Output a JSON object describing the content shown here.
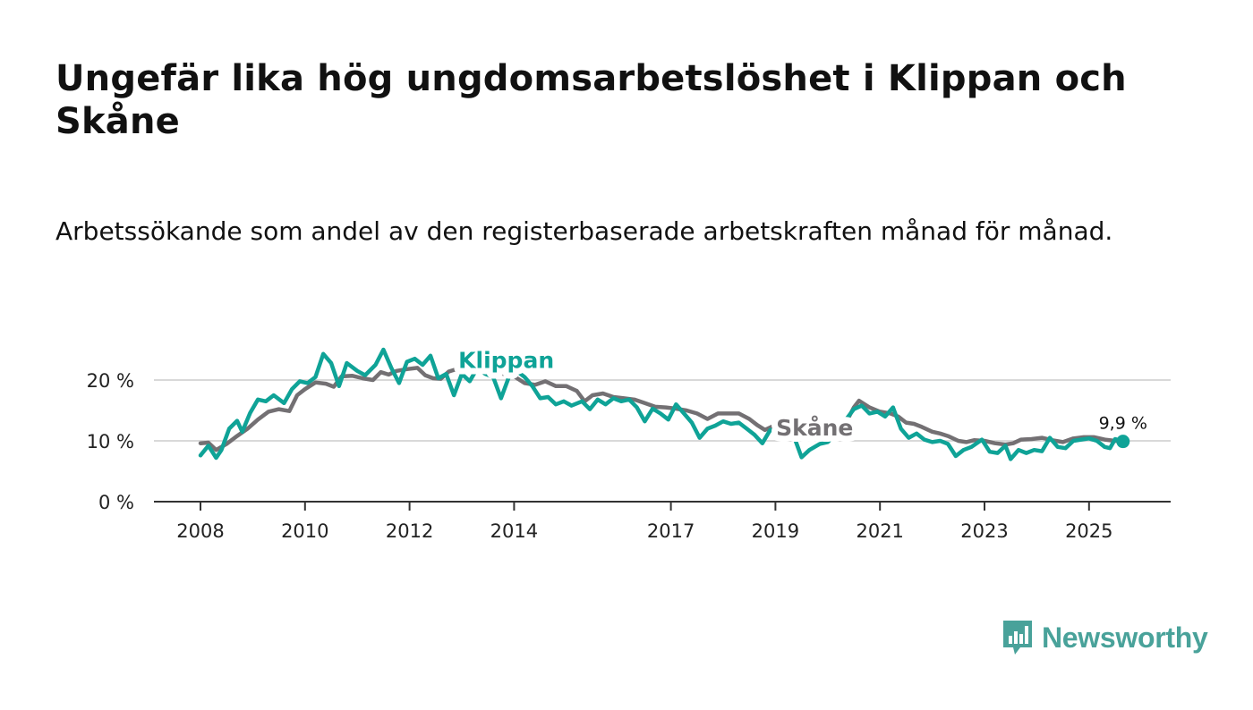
{
  "title": "Ungefär lika hög ungdomsarbetslöshet i Klippan och Skåne",
  "subtitle": "Arbetssökande som andel av den registerbaserade arbetskraften månad för månad.",
  "brand": {
    "name": "Newsworthy",
    "color": "#49a29a"
  },
  "chart_data": {
    "type": "line",
    "title": "Ungefär lika hög ungdomsarbetslöshet i Klippan och Skåne",
    "xlabel": "",
    "ylabel": "",
    "ylim": [
      0,
      25
    ],
    "xlim": [
      2007.6,
      2026.5
    ],
    "grid": true,
    "y_ticks": [
      {
        "value": 0,
        "label": "0 %"
      },
      {
        "value": 10,
        "label": "10 %"
      },
      {
        "value": 20,
        "label": "20 %"
      }
    ],
    "x_ticks": [
      {
        "value": 2008,
        "label": "2008"
      },
      {
        "value": 2010,
        "label": "2010"
      },
      {
        "value": 2012,
        "label": "2012"
      },
      {
        "value": 2014,
        "label": "2014"
      },
      {
        "value": 2017,
        "label": "2017"
      },
      {
        "value": 2019,
        "label": "2019"
      },
      {
        "value": 2021,
        "label": "2021"
      },
      {
        "value": 2023,
        "label": "2023"
      },
      {
        "value": 2025,
        "label": "2025"
      }
    ],
    "series": [
      {
        "name": "Skåne",
        "color": "#737073",
        "label_at": [
          2019.75,
          12.2
        ],
        "points": [
          [
            2008.0,
            9.6
          ],
          [
            2008.15,
            9.7
          ],
          [
            2008.3,
            8.5
          ],
          [
            2008.5,
            9.5
          ],
          [
            2008.7,
            10.8
          ],
          [
            2008.9,
            12.0
          ],
          [
            2009.1,
            13.5
          ],
          [
            2009.3,
            14.8
          ],
          [
            2009.5,
            15.2
          ],
          [
            2009.7,
            14.9
          ],
          [
            2009.85,
            17.5
          ],
          [
            2010.0,
            18.5
          ],
          [
            2010.2,
            19.6
          ],
          [
            2010.4,
            19.4
          ],
          [
            2010.55,
            18.9
          ],
          [
            2010.7,
            20.6
          ],
          [
            2010.9,
            20.7
          ],
          [
            2011.1,
            20.3
          ],
          [
            2011.3,
            20.0
          ],
          [
            2011.45,
            21.3
          ],
          [
            2011.6,
            20.9
          ],
          [
            2011.75,
            21.5
          ],
          [
            2011.95,
            21.8
          ],
          [
            2012.15,
            22.0
          ],
          [
            2012.3,
            20.8
          ],
          [
            2012.45,
            20.3
          ],
          [
            2012.6,
            20.2
          ],
          [
            2012.75,
            21.4
          ],
          [
            2012.9,
            21.8
          ],
          [
            2013.0,
            21.6
          ],
          [
            2013.2,
            21.9
          ],
          [
            2013.4,
            21.4
          ],
          [
            2013.6,
            21.5
          ],
          [
            2013.8,
            21.0
          ],
          [
            2014.0,
            20.6
          ],
          [
            2014.2,
            19.5
          ],
          [
            2014.4,
            19.2
          ],
          [
            2014.6,
            19.8
          ],
          [
            2014.8,
            19.0
          ],
          [
            2015.0,
            19.0
          ],
          [
            2015.2,
            18.2
          ],
          [
            2015.35,
            16.5
          ],
          [
            2015.5,
            17.5
          ],
          [
            2015.7,
            17.8
          ],
          [
            2015.9,
            17.2
          ],
          [
            2016.1,
            17.0
          ],
          [
            2016.3,
            16.8
          ],
          [
            2016.5,
            16.2
          ],
          [
            2016.7,
            15.6
          ],
          [
            2016.9,
            15.5
          ],
          [
            2017.1,
            15.3
          ],
          [
            2017.3,
            15.0
          ],
          [
            2017.5,
            14.5
          ],
          [
            2017.7,
            13.6
          ],
          [
            2017.9,
            14.5
          ],
          [
            2018.1,
            14.5
          ],
          [
            2018.3,
            14.5
          ],
          [
            2018.5,
            13.6
          ],
          [
            2018.65,
            12.6
          ],
          [
            2018.8,
            11.8
          ],
          [
            2018.95,
            12.4
          ],
          [
            2019.1,
            12.6
          ],
          [
            2019.25,
            12.0
          ],
          [
            2019.4,
            11.5
          ],
          [
            2019.55,
            11.2
          ],
          [
            2019.75,
            10.2
          ],
          [
            2020.0,
            10.5
          ],
          [
            2020.2,
            11.0
          ],
          [
            2020.35,
            13.0
          ],
          [
            2020.5,
            15.5
          ],
          [
            2020.6,
            16.6
          ],
          [
            2020.8,
            15.5
          ],
          [
            2021.0,
            14.8
          ],
          [
            2021.2,
            14.5
          ],
          [
            2021.35,
            14.0
          ],
          [
            2021.5,
            13.0
          ],
          [
            2021.65,
            12.8
          ],
          [
            2021.8,
            12.3
          ],
          [
            2022.0,
            11.5
          ],
          [
            2022.15,
            11.2
          ],
          [
            2022.3,
            10.8
          ],
          [
            2022.5,
            10.0
          ],
          [
            2022.65,
            9.8
          ],
          [
            2022.8,
            10.1
          ],
          [
            2023.0,
            10.0
          ],
          [
            2023.2,
            9.6
          ],
          [
            2023.4,
            9.4
          ],
          [
            2023.55,
            9.6
          ],
          [
            2023.7,
            10.2
          ],
          [
            2023.9,
            10.3
          ],
          [
            2024.1,
            10.5
          ],
          [
            2024.3,
            10.1
          ],
          [
            2024.5,
            9.8
          ],
          [
            2024.7,
            10.4
          ],
          [
            2024.9,
            10.6
          ],
          [
            2025.1,
            10.6
          ],
          [
            2025.3,
            10.2
          ],
          [
            2025.5,
            10.0
          ],
          [
            2025.65,
            9.9
          ]
        ]
      },
      {
        "name": "Klippan",
        "color": "#0fa397",
        "label_at": [
          2013.85,
          23.3
        ],
        "points": [
          [
            2008.0,
            7.6
          ],
          [
            2008.15,
            9.2
          ],
          [
            2008.3,
            7.2
          ],
          [
            2008.4,
            8.5
          ],
          [
            2008.55,
            12.0
          ],
          [
            2008.7,
            13.3
          ],
          [
            2008.8,
            11.5
          ],
          [
            2008.95,
            14.6
          ],
          [
            2009.1,
            16.8
          ],
          [
            2009.25,
            16.5
          ],
          [
            2009.4,
            17.5
          ],
          [
            2009.6,
            16.2
          ],
          [
            2009.75,
            18.5
          ],
          [
            2009.9,
            19.8
          ],
          [
            2010.05,
            19.5
          ],
          [
            2010.2,
            20.5
          ],
          [
            2010.35,
            24.3
          ],
          [
            2010.5,
            22.8
          ],
          [
            2010.65,
            19.0
          ],
          [
            2010.8,
            22.8
          ],
          [
            2011.0,
            21.5
          ],
          [
            2011.15,
            20.8
          ],
          [
            2011.35,
            22.5
          ],
          [
            2011.5,
            25.0
          ],
          [
            2011.65,
            22.0
          ],
          [
            2011.8,
            19.5
          ],
          [
            2011.95,
            23.0
          ],
          [
            2012.1,
            23.5
          ],
          [
            2012.25,
            22.5
          ],
          [
            2012.4,
            24.0
          ],
          [
            2012.55,
            20.3
          ],
          [
            2012.7,
            21.0
          ],
          [
            2012.85,
            17.5
          ],
          [
            2013.0,
            21.0
          ],
          [
            2013.15,
            19.8
          ],
          [
            2013.3,
            22.0
          ],
          [
            2013.45,
            21.0
          ],
          [
            2013.6,
            20.5
          ],
          [
            2013.75,
            17.0
          ],
          [
            2013.9,
            20.5
          ],
          [
            2014.05,
            21.5
          ],
          [
            2014.2,
            20.5
          ],
          [
            2014.35,
            19.0
          ],
          [
            2014.5,
            17.0
          ],
          [
            2014.65,
            17.2
          ],
          [
            2014.8,
            16.0
          ],
          [
            2014.95,
            16.5
          ],
          [
            2015.1,
            15.8
          ],
          [
            2015.3,
            16.5
          ],
          [
            2015.45,
            15.2
          ],
          [
            2015.6,
            16.8
          ],
          [
            2015.75,
            16.0
          ],
          [
            2015.9,
            17.0
          ],
          [
            2016.05,
            16.5
          ],
          [
            2016.2,
            16.8
          ],
          [
            2016.35,
            15.5
          ],
          [
            2016.5,
            13.2
          ],
          [
            2016.65,
            15.3
          ],
          [
            2016.8,
            14.5
          ],
          [
            2016.95,
            13.5
          ],
          [
            2017.1,
            16.0
          ],
          [
            2017.25,
            14.5
          ],
          [
            2017.4,
            13.0
          ],
          [
            2017.55,
            10.5
          ],
          [
            2017.7,
            12.0
          ],
          [
            2017.85,
            12.5
          ],
          [
            2018.0,
            13.2
          ],
          [
            2018.15,
            12.8
          ],
          [
            2018.3,
            13.0
          ],
          [
            2018.45,
            12.0
          ],
          [
            2018.6,
            11.0
          ],
          [
            2018.75,
            9.6
          ],
          [
            2018.9,
            11.8
          ],
          [
            2019.05,
            11.5
          ],
          [
            2019.15,
            10.2
          ],
          [
            2019.3,
            12.0
          ],
          [
            2019.5,
            7.3
          ],
          [
            2019.65,
            8.5
          ],
          [
            2019.85,
            9.5
          ],
          [
            2020.0,
            9.8
          ],
          [
            2020.2,
            11.5
          ],
          [
            2020.35,
            13.5
          ],
          [
            2020.5,
            15.2
          ],
          [
            2020.65,
            15.8
          ],
          [
            2020.8,
            14.5
          ],
          [
            2020.95,
            14.8
          ],
          [
            2021.1,
            14.0
          ],
          [
            2021.25,
            15.5
          ],
          [
            2021.4,
            12.0
          ],
          [
            2021.55,
            10.5
          ],
          [
            2021.7,
            11.2
          ],
          [
            2021.85,
            10.2
          ],
          [
            2022.0,
            9.8
          ],
          [
            2022.15,
            10.0
          ],
          [
            2022.3,
            9.5
          ],
          [
            2022.45,
            7.5
          ],
          [
            2022.6,
            8.5
          ],
          [
            2022.75,
            9.0
          ],
          [
            2022.95,
            10.2
          ],
          [
            2023.1,
            8.2
          ],
          [
            2023.25,
            8.0
          ],
          [
            2023.4,
            9.2
          ],
          [
            2023.5,
            7.0
          ],
          [
            2023.65,
            8.5
          ],
          [
            2023.8,
            8.0
          ],
          [
            2023.95,
            8.5
          ],
          [
            2024.1,
            8.3
          ],
          [
            2024.25,
            10.5
          ],
          [
            2024.4,
            9.0
          ],
          [
            2024.55,
            8.8
          ],
          [
            2024.7,
            10.0
          ],
          [
            2024.85,
            10.2
          ],
          [
            2025.0,
            10.4
          ],
          [
            2025.15,
            10.0
          ],
          [
            2025.3,
            9.0
          ],
          [
            2025.4,
            8.8
          ],
          [
            2025.5,
            10.3
          ],
          [
            2025.65,
            9.9
          ]
        ]
      }
    ],
    "annotations": [
      {
        "text": "9,9 %",
        "x": 2025.65,
        "y": 9.9,
        "series": "Klippan"
      }
    ]
  }
}
